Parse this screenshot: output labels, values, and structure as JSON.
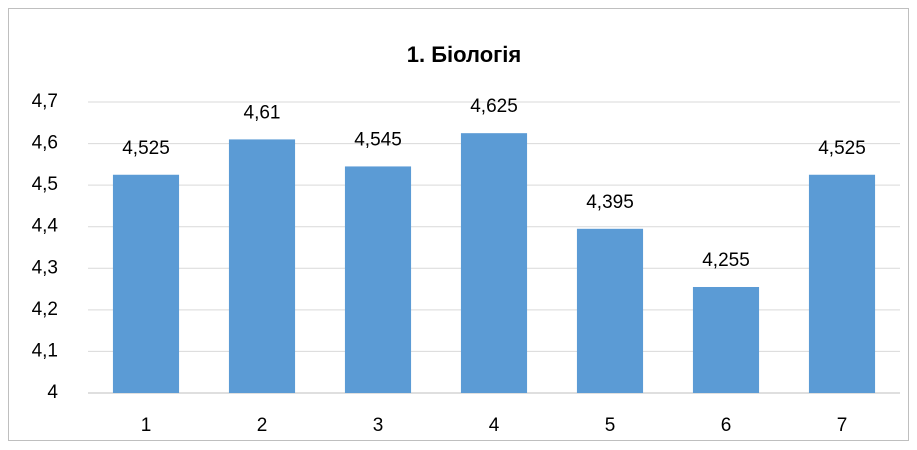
{
  "chart_data": {
    "type": "bar",
    "title": "1. Біологія",
    "categories": [
      "1",
      "2",
      "3",
      "4",
      "5",
      "6",
      "7"
    ],
    "values": [
      4.525,
      4.61,
      4.545,
      4.625,
      4.395,
      4.255,
      4.525
    ],
    "value_labels": [
      "4,525",
      "4,61",
      "4,545",
      "4,625",
      "4,395",
      "4,255",
      "4,525"
    ],
    "color": "#5b9bd5",
    "ylim": [
      4,
      4.7
    ],
    "yticks": [
      4,
      {
        "value": 4.1,
        "label": "4,1"
      },
      {
        "value": 4.2,
        "label": "4,2"
      },
      {
        "value": 4.3,
        "label": "4,3"
      },
      {
        "value": 4.4,
        "label": "4,4"
      },
      {
        "value": 4.5,
        "label": "4,5"
      },
      {
        "value": 4.6,
        "label": "4,6"
      },
      {
        "value": 4.7,
        "label": "4,7"
      }
    ],
    "grid": true
  }
}
